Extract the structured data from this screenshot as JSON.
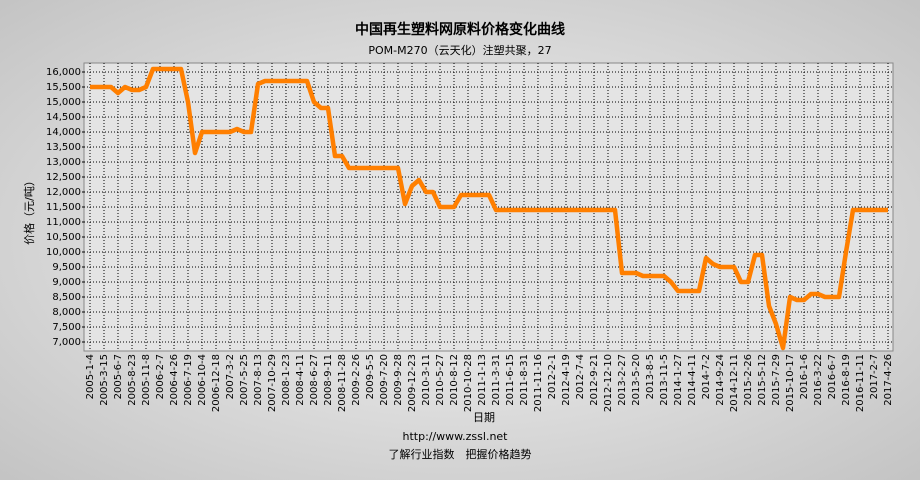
{
  "chart_data": {
    "type": "line",
    "title": "中国再生塑料网原料价格变化曲线",
    "subtitle": "POM-M270（云天化）注塑共聚，27",
    "x_label": "日期",
    "y_label": "价格（元/吨）",
    "url": "http://www.zssl.net",
    "slogan": "了解行业指数　把握价格趋势",
    "categories": [
      "2005-1-4",
      null,
      "2005-3-15",
      null,
      "2005-6-7",
      null,
      "2005-8-23",
      null,
      "2005-11-8",
      null,
      "2006-2-7",
      null,
      "2006-4-26",
      null,
      "2006-7-19",
      null,
      "2006-10-4",
      null,
      "2006-12-18",
      null,
      "2007-3-2",
      null,
      "2007-5-25",
      null,
      "2007-8-13",
      null,
      "2007-10-29",
      null,
      "2008-1-23",
      null,
      "2008-4-11",
      null,
      "2008-6-27",
      null,
      "2008-9-11",
      null,
      "2008-11-28",
      null,
      "2009-2-26",
      null,
      "2009-5-5",
      null,
      "2009-7-20",
      null,
      "2009-9-28",
      null,
      "2009-12-23",
      null,
      "2010-3-11",
      null,
      "2010-5-27",
      null,
      "2010-8-12",
      null,
      "2010-10-28",
      null,
      "2011-1-13",
      null,
      "2011-3-31",
      null,
      "2011-6-15",
      null,
      "2011-8-31",
      null,
      "2011-11-16",
      null,
      "2012-2-1",
      null,
      "2012-4-19",
      null,
      "2012-7-4",
      null,
      "2012-9-21",
      null,
      "2012-12-10",
      null,
      "2013-2-27",
      null,
      "2013-5-20",
      null,
      "2013-8-5",
      null,
      "2013-11-5",
      null,
      "2014-1-27",
      null,
      "2014-4-11",
      null,
      "2014-7-2",
      null,
      "2014-9-24",
      null,
      "2014-12-11",
      null,
      "2015-2-26",
      null,
      "2015-5-12",
      null,
      "2015-7-29",
      null,
      "2015-10-17",
      null,
      "2016-1-6",
      null,
      "2016-3-22",
      null,
      "2016-6-7",
      null,
      "2016-8-19",
      null,
      "2016-11-11",
      null,
      "2017-2-7",
      null,
      "2017-4-26"
    ],
    "series": [
      {
        "name": "POM-M270",
        "color": "#ff7f00",
        "values": [
          15500,
          15500,
          15500,
          15500,
          15300,
          15500,
          15400,
          15400,
          15500,
          16100,
          16100,
          16100,
          16100,
          16100,
          15000,
          13300,
          14000,
          14000,
          14000,
          14000,
          14000,
          14100,
          14000,
          14000,
          15600,
          15700,
          15700,
          15700,
          15700,
          15700,
          15700,
          15700,
          15000,
          14800,
          14800,
          13200,
          13200,
          12800,
          12800,
          12800,
          12800,
          12800,
          12800,
          12800,
          12800,
          11600,
          12200,
          12400,
          12000,
          12000,
          11500,
          11500,
          11500,
          11900,
          11900,
          11900,
          11900,
          11900,
          11400,
          11400,
          11400,
          11400,
          11400,
          11400,
          11400,
          11400,
          11400,
          11400,
          11400,
          11400,
          11400,
          11400,
          11400,
          11400,
          11400,
          11400,
          9300,
          9300,
          9300,
          9200,
          9200,
          9200,
          9200,
          9000,
          8700,
          8700,
          8700,
          8700,
          9800,
          9600,
          9500,
          9500,
          9500,
          9000,
          9000,
          9900,
          9900,
          8200,
          7600,
          6800,
          8500,
          8400,
          8400,
          8600,
          8600,
          8500,
          8500,
          8500,
          10000,
          11400,
          11400,
          11400,
          11400,
          11400,
          11400
        ]
      }
    ],
    "ylim": [
      6700,
      16300
    ],
    "yticks": [
      {
        "value": 7000,
        "label": "7,000"
      },
      {
        "value": 7500,
        "label": "7,500"
      },
      {
        "value": 8000,
        "label": "8,000"
      },
      {
        "value": 8500,
        "label": "8,500"
      },
      {
        "value": 9000,
        "label": "9,000"
      },
      {
        "value": 9500,
        "label": "9,500"
      },
      {
        "value": 10000,
        "label": "10,000"
      },
      {
        "value": 10500,
        "label": "10,500"
      },
      {
        "value": 11000,
        "label": "11,000"
      },
      {
        "value": 11500,
        "label": "11,500"
      },
      {
        "value": 12000,
        "label": "12,000"
      },
      {
        "value": 12500,
        "label": "12,500"
      },
      {
        "value": 13000,
        "label": "13,000"
      },
      {
        "value": 13500,
        "label": "13,500"
      },
      {
        "value": 14000,
        "label": "14,000"
      },
      {
        "value": 14500,
        "label": "14,500"
      },
      {
        "value": 15000,
        "label": "15,000"
      },
      {
        "value": 15500,
        "label": "15,500"
      },
      {
        "value": 16000,
        "label": "16,000"
      }
    ],
    "grid": true
  }
}
